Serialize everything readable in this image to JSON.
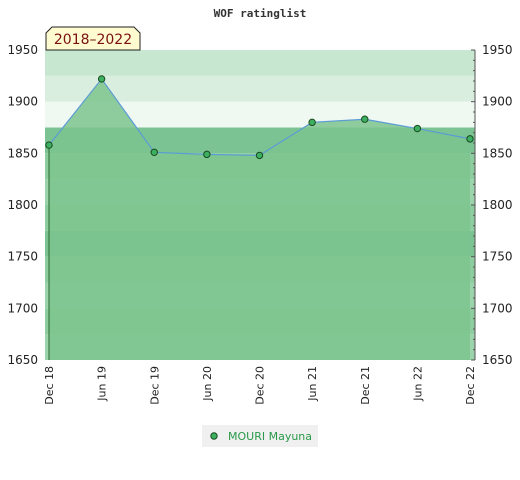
{
  "chart_data": {
    "type": "area",
    "title": "WOF ratinglist",
    "badge": "2018–2022",
    "categories": [
      "Dec 18",
      "Jun 19",
      "Dec 19",
      "Jun 20",
      "Dec 20",
      "Jun 21",
      "Dec 21",
      "Jun 22",
      "Dec 22"
    ],
    "series": [
      {
        "name": "MOURI Mayuna",
        "values": [
          1858,
          1922,
          1851,
          1849,
          1848,
          1880,
          1883,
          1874,
          1864
        ]
      }
    ],
    "ylim": [
      1650,
      1950
    ],
    "yticks": [
      1650,
      1700,
      1750,
      1800,
      1850,
      1900,
      1950
    ],
    "xlabel": "",
    "ylabel": "",
    "grid": true,
    "legend_position": "bottom",
    "colors": {
      "line": "#5b9bd5",
      "marker_fill": "#3cb060",
      "marker_stroke": "#1a4a20",
      "area": "#7cc48e",
      "badge_bg": "#fffbd0"
    }
  }
}
